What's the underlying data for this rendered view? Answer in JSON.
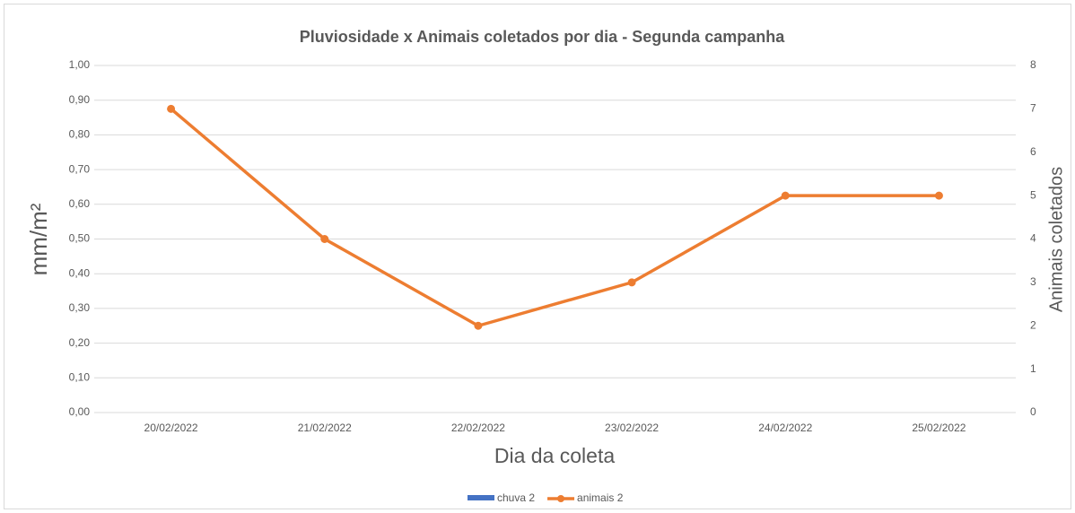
{
  "chart_data": {
    "type": "combo",
    "title": "Pluviosidade x Animais coletados por dia - Segunda campanha",
    "x_label": "Dia da coleta",
    "y_label": "mm/m²",
    "y2_label": "Animais coletados",
    "categories": [
      "20/02/2022",
      "21/02/2022",
      "22/02/2022",
      "23/02/2022",
      "24/02/2022",
      "25/02/2022"
    ],
    "series": [
      {
        "name": "chuva 2",
        "type": "bar",
        "color": "#4472c4",
        "values": [
          0,
          0,
          0,
          0,
          0,
          0
        ]
      },
      {
        "name": "animais 2",
        "type": "line",
        "color": "#ed7d31",
        "axis": "y2",
        "values": [
          7,
          4,
          2,
          3,
          5,
          5
        ]
      }
    ],
    "ylim": [
      0,
      1
    ],
    "yticks": [
      {
        "value": 0,
        "label": "0,00"
      },
      {
        "value": 0.1,
        "label": "0,10"
      },
      {
        "value": 0.2,
        "label": "0,20"
      },
      {
        "value": 0.3,
        "label": "0,30"
      },
      {
        "value": 0.4,
        "label": "0,40"
      },
      {
        "value": 0.5,
        "label": "0,50"
      },
      {
        "value": 0.6,
        "label": "0,60"
      },
      {
        "value": 0.7,
        "label": "0,70"
      },
      {
        "value": 0.8,
        "label": "0,80"
      },
      {
        "value": 0.9,
        "label": "0,90"
      },
      {
        "value": 1,
        "label": "1,00"
      }
    ],
    "y2lim": [
      0,
      8
    ],
    "y2ticks": [
      0,
      1,
      2,
      3,
      4,
      5,
      6,
      7,
      8
    ],
    "grid": true,
    "legend": "bottom"
  }
}
